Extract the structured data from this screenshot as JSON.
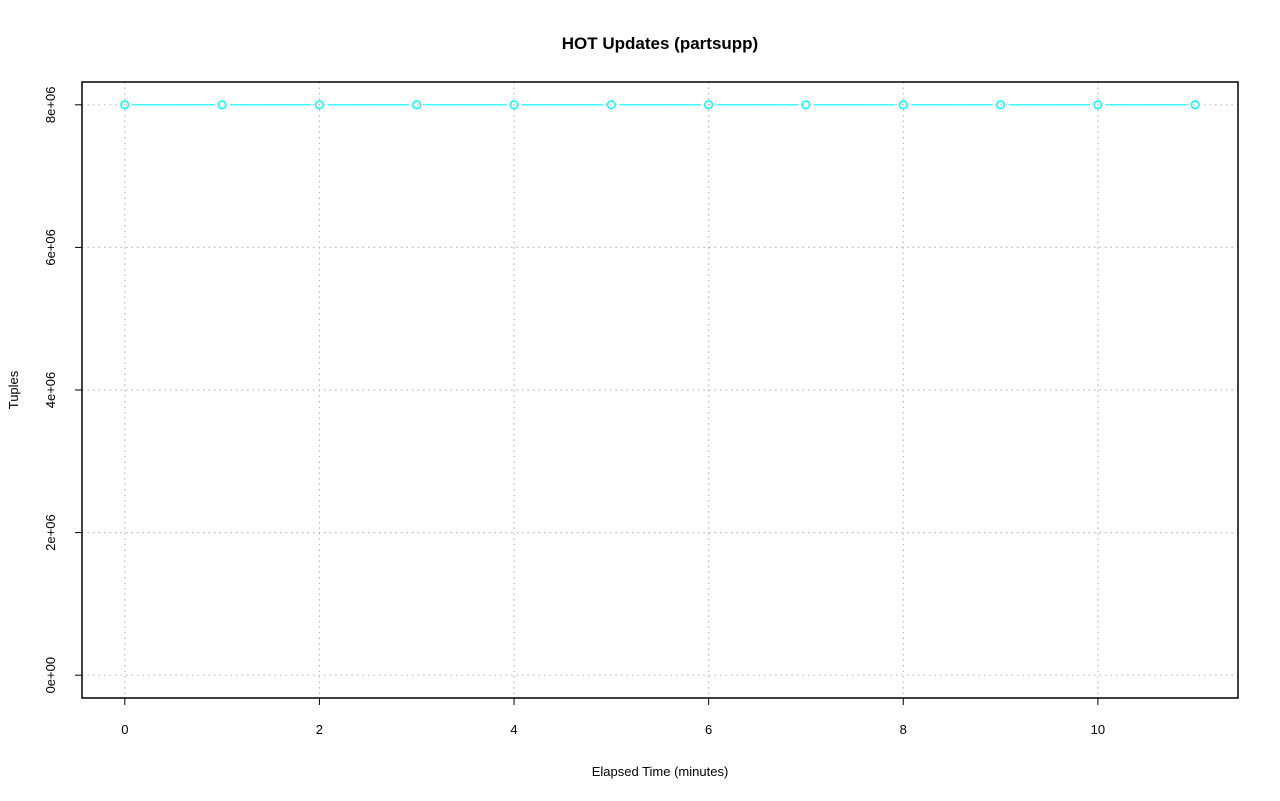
{
  "chart_data": {
    "type": "line",
    "title": "HOT Updates (partsupp)",
    "xlabel": "Elapsed Time (minutes)",
    "ylabel": "Tuples",
    "xlim": [
      0,
      11
    ],
    "ylim": [
      0,
      8000000
    ],
    "x_ticks": [
      0,
      2,
      4,
      6,
      8,
      10
    ],
    "x_tick_labels": [
      "0",
      "2",
      "4",
      "6",
      "8",
      "10"
    ],
    "y_ticks": [
      0,
      2000000,
      4000000,
      6000000,
      8000000
    ],
    "y_tick_labels": [
      "0e+00",
      "2e+06",
      "4e+06",
      "6e+06",
      "8e+06"
    ],
    "grid": true,
    "series": [
      {
        "color": "#00FFFF",
        "marker": "open-circle",
        "x": [
          0,
          1,
          2,
          3,
          4,
          5,
          6,
          7,
          8,
          9,
          10,
          11
        ],
        "y": [
          8000000,
          8000000,
          8000000,
          8000000,
          8000000,
          8000000,
          8000000,
          8000000,
          8000000,
          8000000,
          8000000,
          8000000
        ]
      }
    ]
  }
}
